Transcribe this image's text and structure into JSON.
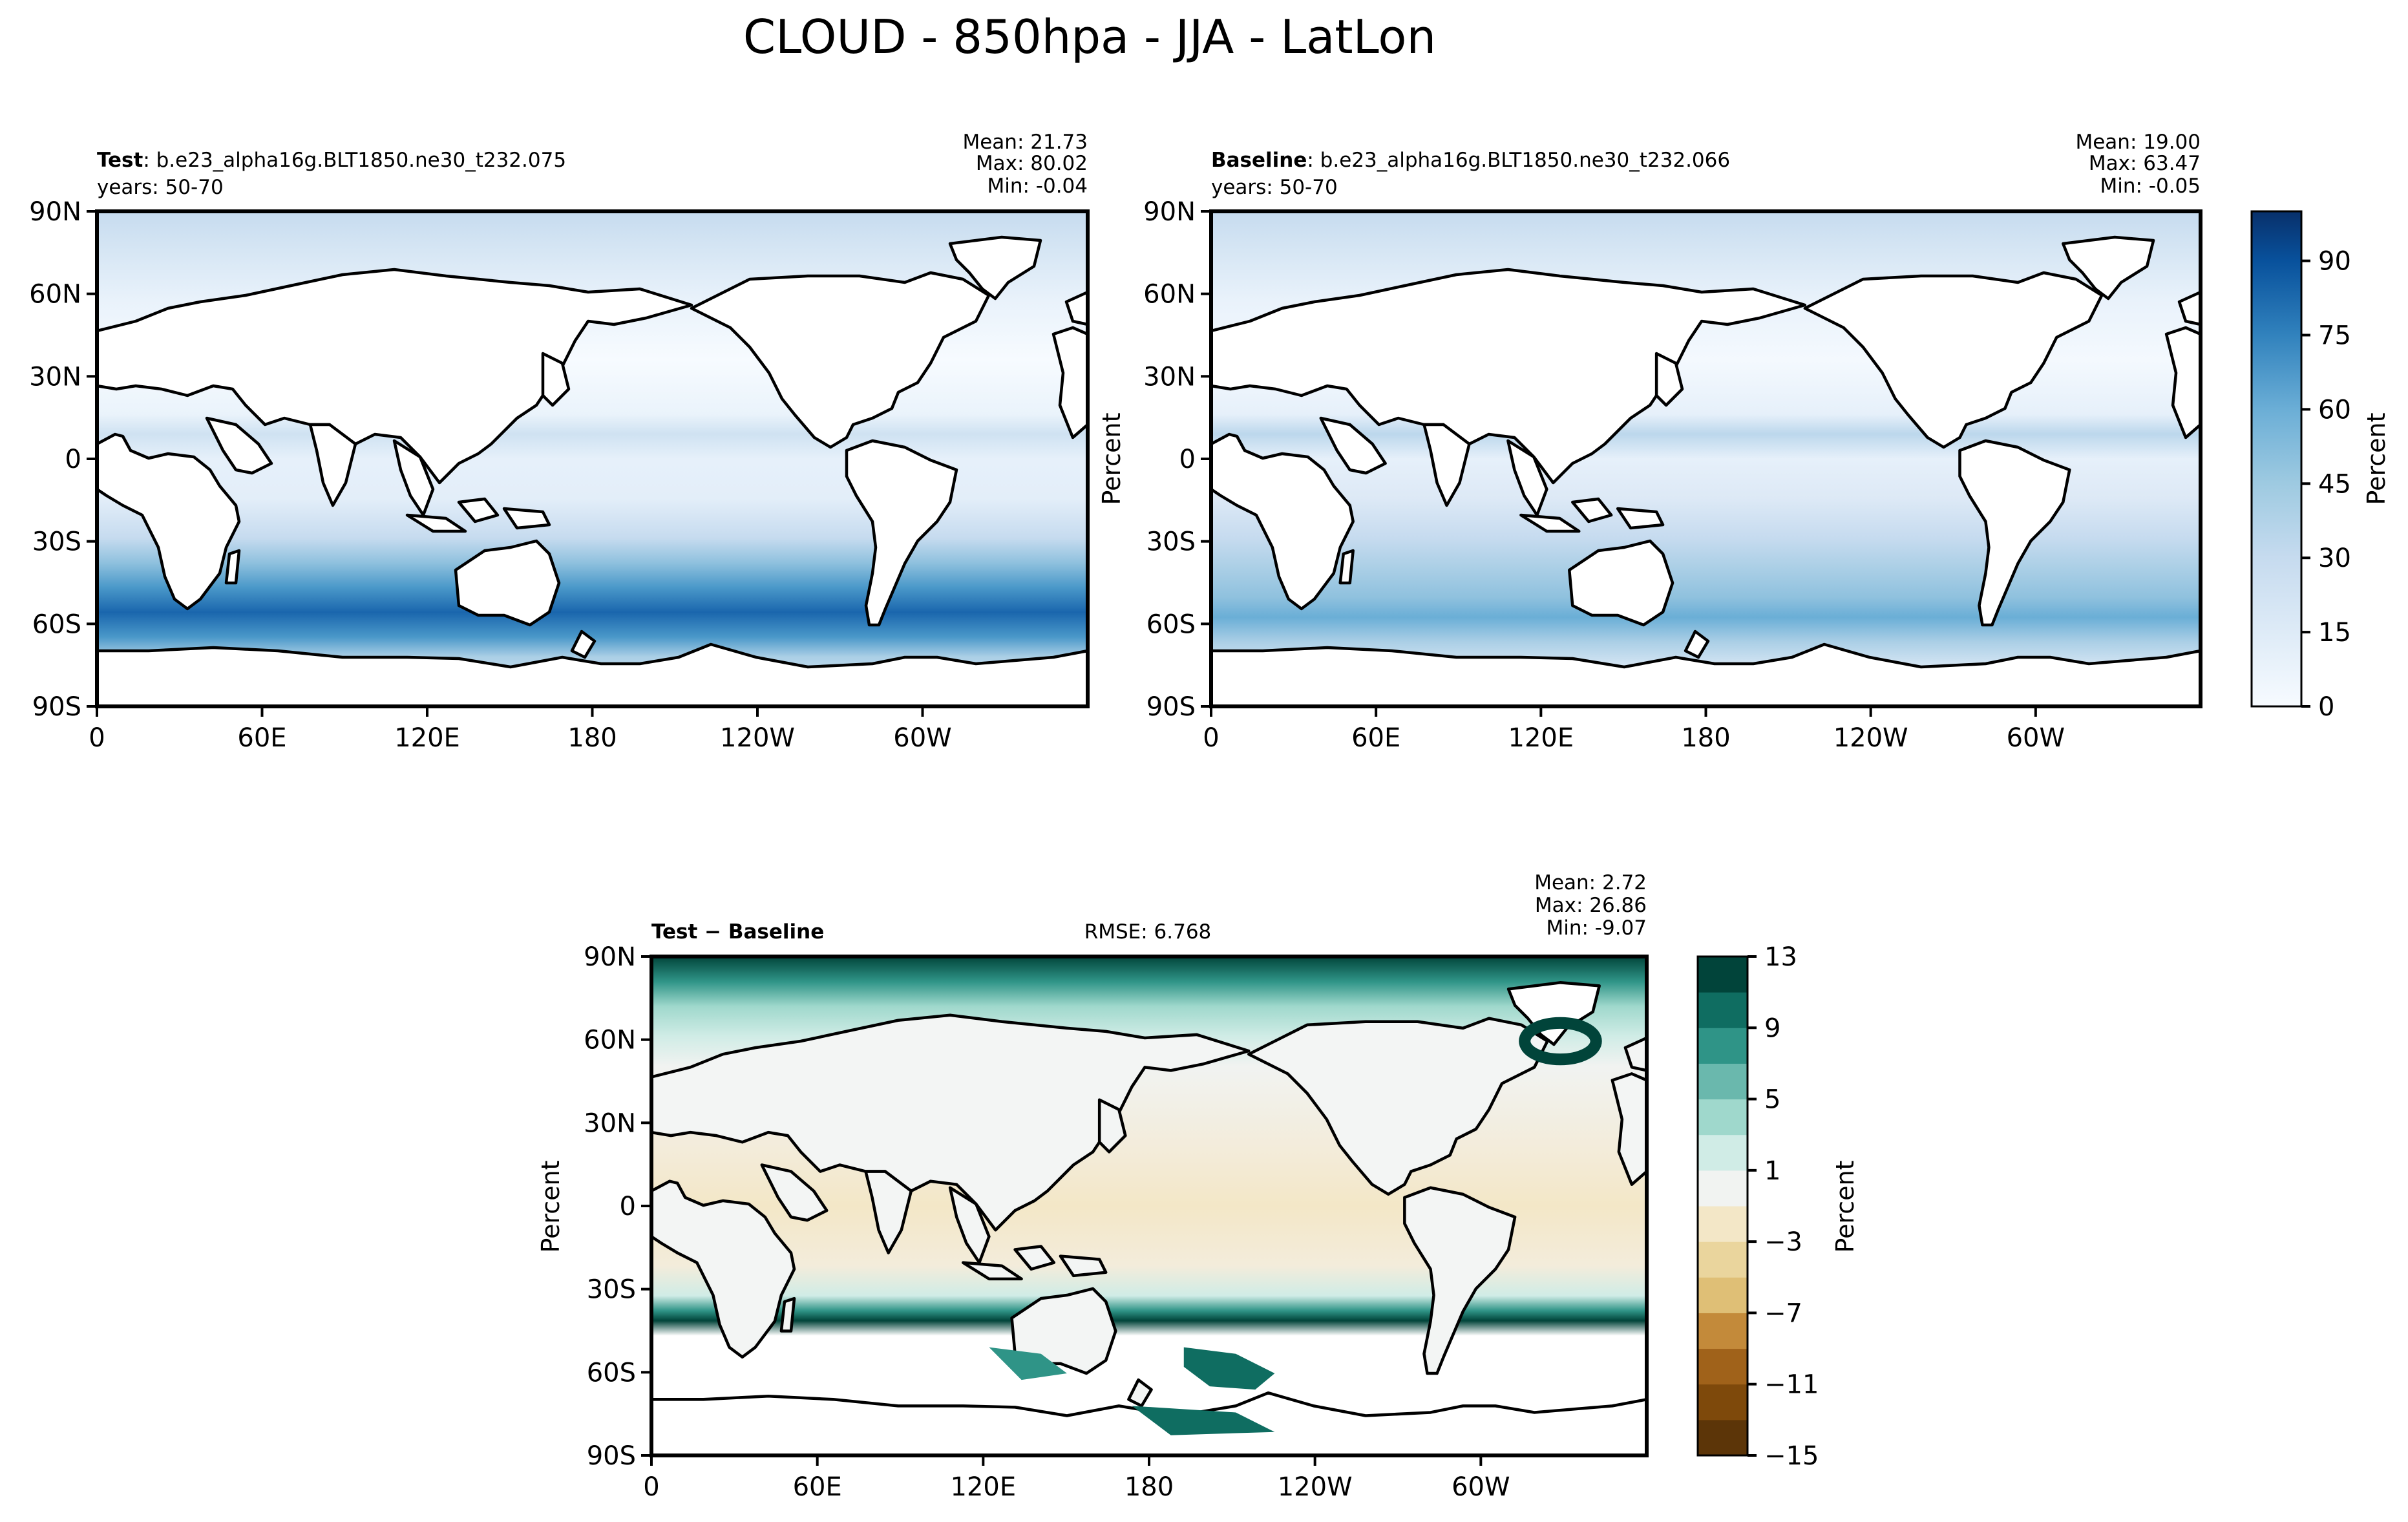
{
  "title": "CLOUD - 850hpa - JJA - LatLon",
  "colors": {
    "blues": [
      "#f7fbff",
      "#e6f0fa",
      "#d6e6f4",
      "#c6dbef",
      "#abcfe6",
      "#8fc1de",
      "#6aaed6",
      "#4a98c9",
      "#2f7fbc",
      "#1a66ad",
      "#08519c",
      "#083c7d",
      "#08306b"
    ],
    "diverge": [
      "#5c3508",
      "#7e490b",
      "#a0621a",
      "#c38a3a",
      "#dfbf76",
      "#ead59d",
      "#f3e7c7",
      "#f1f3f1",
      "#d0ece6",
      "#9fd8cc",
      "#6ab8ad",
      "#2f9487",
      "#0f6d61",
      "#01443a"
    ]
  },
  "chart_data": [
    {
      "type": "heatmap",
      "panel": "test",
      "title_bold": "Test",
      "title_text": ": b.e23_alpha16g.BLT1850.ne30_t232.075",
      "subtitle": "years: 50-70",
      "stats": {
        "mean": "Mean: 21.73",
        "max": "Max: 80.02",
        "min": "Min: -0.04"
      },
      "xticks": [
        "0",
        "60E",
        "120E",
        "180",
        "120W",
        "60W"
      ],
      "yticks": [
        "90N",
        "60N",
        "30N",
        "0",
        "30S",
        "60S",
        "90S"
      ],
      "ylabel": ""
    },
    {
      "type": "heatmap",
      "panel": "baseline",
      "title_bold": "Baseline",
      "title_text": ": b.e23_alpha16g.BLT1850.ne30_t232.066",
      "subtitle": "years: 50-70",
      "stats": {
        "mean": "Mean: 19.00",
        "max": "Max: 63.47",
        "min": "Min: -0.05"
      },
      "xticks": [
        "0",
        "60E",
        "120E",
        "180",
        "120W",
        "60W"
      ],
      "yticks": [
        "90N",
        "60N",
        "30N",
        "0",
        "30S",
        "60S",
        "90S"
      ],
      "ylabel": "Percent",
      "colorbar": {
        "label": "Percent",
        "ticks": [
          "0",
          "15",
          "30",
          "45",
          "60",
          "75",
          "90"
        ],
        "range": [
          0,
          100
        ]
      }
    },
    {
      "type": "heatmap",
      "panel": "difference",
      "title_bold": "Test − Baseline",
      "rmse": "RMSE: 6.768",
      "stats": {
        "mean": "Mean:  2.72",
        "max": "Max: 26.86",
        "min": "Min: -9.07"
      },
      "xticks": [
        "0",
        "60E",
        "120E",
        "180",
        "120W",
        "60W"
      ],
      "yticks": [
        "90N",
        "60N",
        "30N",
        "0",
        "30S",
        "60S",
        "90S"
      ],
      "ylabel": "Percent",
      "colorbar": {
        "label": "Percent",
        "ticks": [
          "13",
          "9",
          "5",
          "1",
          "−3",
          "−7",
          "−11",
          "−15"
        ],
        "range": [
          -15,
          13
        ]
      }
    }
  ]
}
